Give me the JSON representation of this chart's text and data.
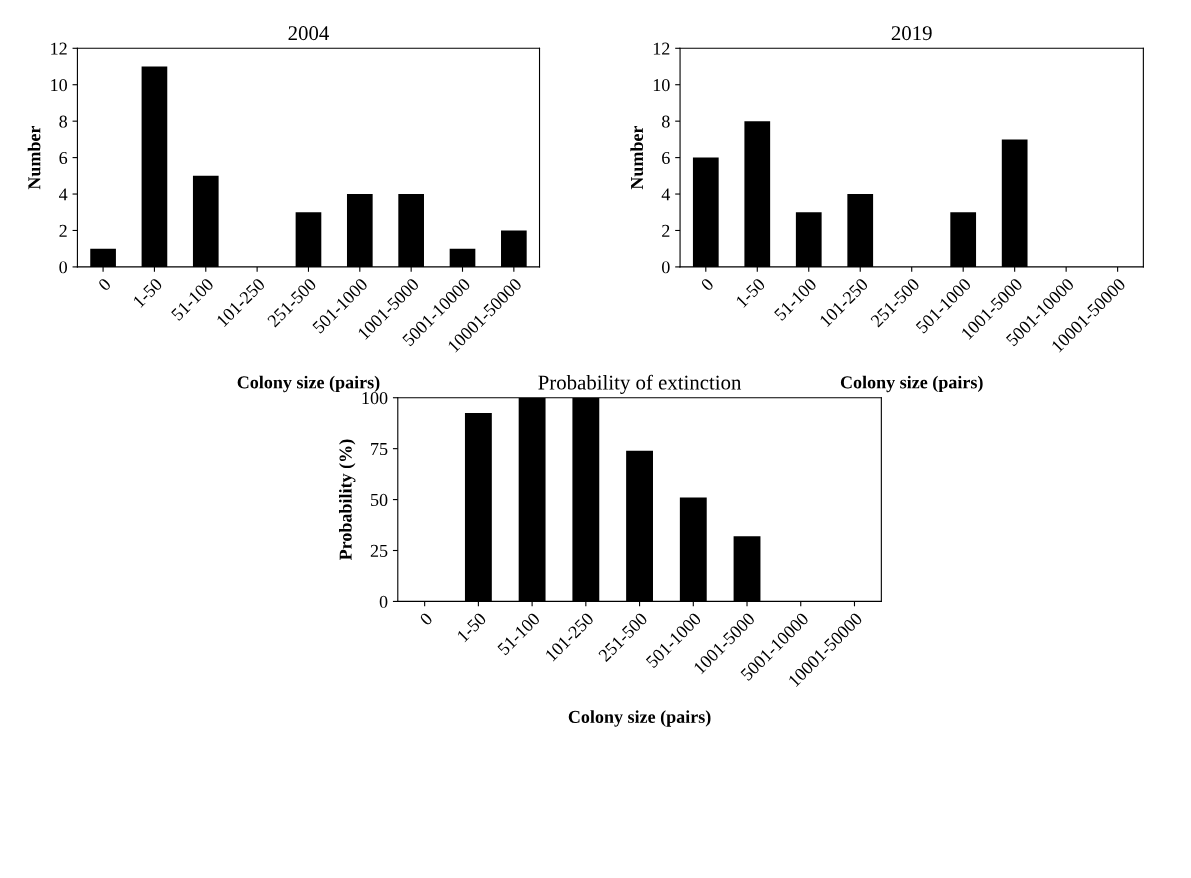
{
  "chart_data": [
    {
      "type": "bar",
      "title": "2004",
      "xlabel": "Colony size (pairs)",
      "ylabel": "Number",
      "categories": [
        "0",
        "1-50",
        "51-100",
        "101-250",
        "251-500",
        "501-1000",
        "1001-5000",
        "5001-10000",
        "10001-50000"
      ],
      "values": [
        1,
        11,
        5,
        0,
        3,
        4,
        4,
        1,
        2
      ],
      "color": "#000000",
      "ylim": [
        0,
        12
      ],
      "yticks": [
        0,
        2,
        4,
        6,
        8,
        10,
        12
      ],
      "grid": false,
      "legend": false
    },
    {
      "type": "bar",
      "title": "2019",
      "xlabel": "Colony size (pairs)",
      "ylabel": "Number",
      "categories": [
        "0",
        "1-50",
        "51-100",
        "101-250",
        "251-500",
        "501-1000",
        "1001-5000",
        "5001-10000",
        "10001-50000"
      ],
      "values": [
        6,
        8,
        3,
        4,
        0,
        3,
        7,
        0,
        0
      ],
      "color": "#000000",
      "ylim": [
        0,
        12
      ],
      "yticks": [
        0,
        2,
        4,
        6,
        8,
        10,
        12
      ],
      "grid": false,
      "legend": false
    },
    {
      "type": "bar",
      "title": "Probability of extinction",
      "xlabel": "Colony size (pairs)",
      "ylabel": "Probability (%)",
      "categories": [
        "0",
        "1-50",
        "51-100",
        "101-250",
        "251-500",
        "501-1000",
        "1001-5000",
        "5001-10000",
        "10001-50000"
      ],
      "values": [
        0,
        92.5,
        100,
        100,
        74,
        51,
        32,
        0,
        0
      ],
      "color": "#000000",
      "ylim": [
        0,
        100
      ],
      "yticks": [
        0,
        25,
        50,
        75,
        100
      ],
      "grid": false,
      "legend": false
    }
  ]
}
